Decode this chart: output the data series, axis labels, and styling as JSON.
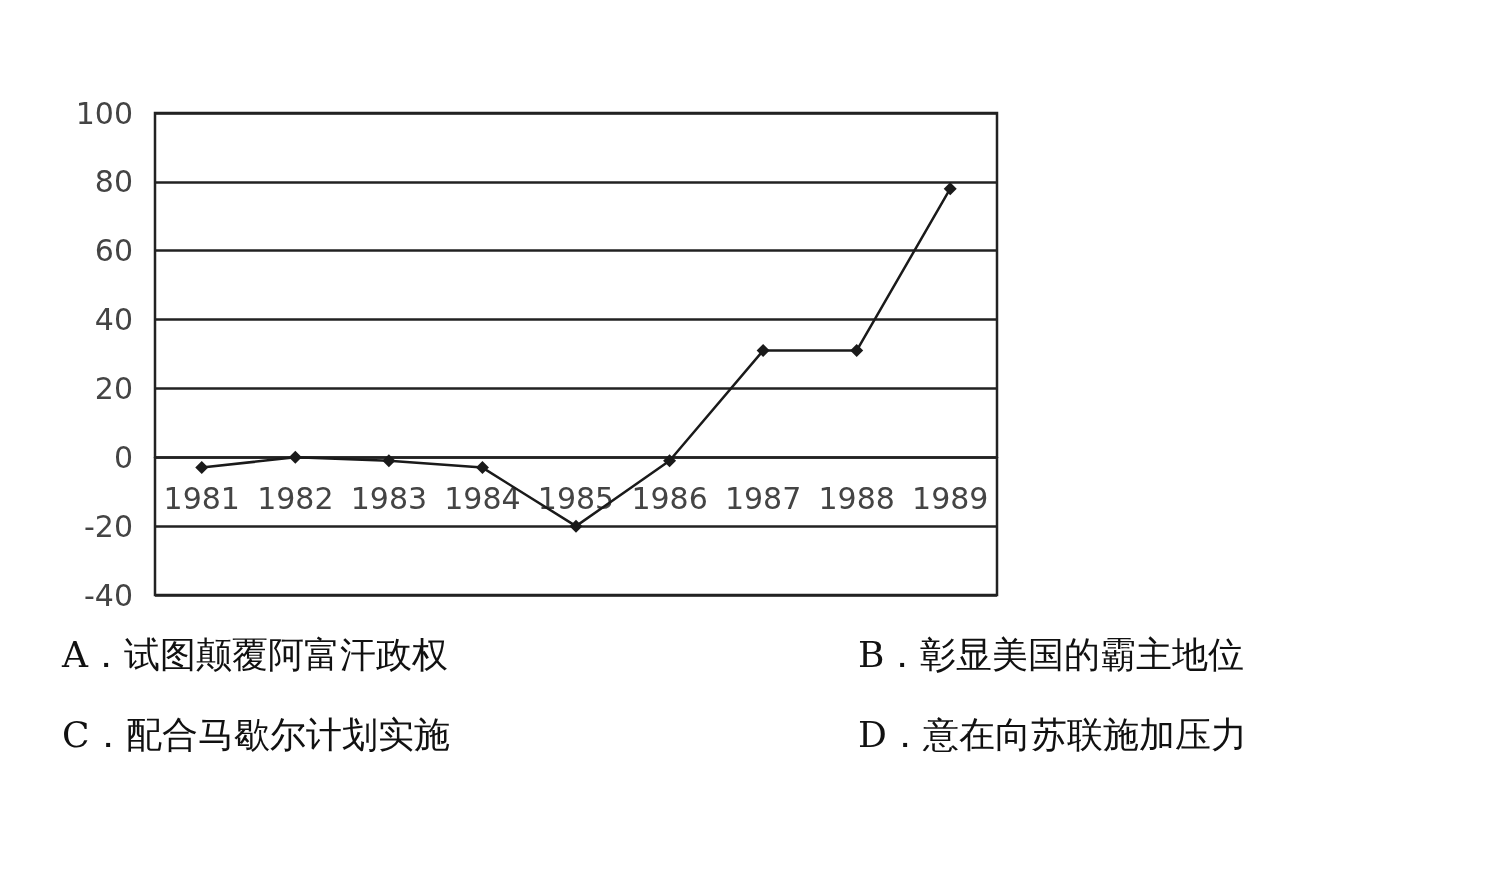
{
  "chart_data": {
    "type": "line",
    "categories": [
      "1981",
      "1982",
      "1983",
      "1984",
      "1985",
      "1986",
      "1987",
      "1988",
      "1989"
    ],
    "series": [
      {
        "color": "#1a1a1a",
        "values": [
          -3,
          0,
          -1,
          -3,
          -20,
          -1,
          31,
          31,
          78
        ]
      }
    ],
    "ylim": [
      -40,
      100
    ],
    "yticks": [
      -40,
      -20,
      0,
      20,
      40,
      60,
      80,
      100
    ],
    "grid": "y",
    "marker": "diamond",
    "line_style": "solid",
    "annotations": [
      "A．试图颠覆阿富汗政权",
      "B．彰显美国的霸主地位",
      "C．配合马歇尔计划实施",
      "D．意在向苏联施加压力"
    ]
  }
}
